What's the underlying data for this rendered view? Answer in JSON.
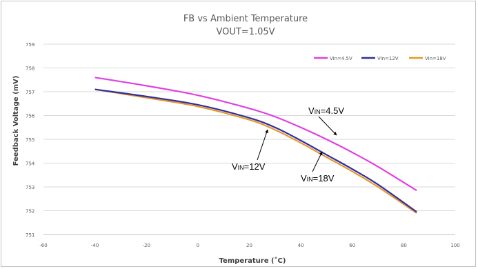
{
  "chart_data": {
    "type": "line",
    "title": "FB vs Ambient Temperature",
    "subtitle": "VOUT=1.05V",
    "xlabel": "Temperature  (˚C)",
    "ylabel": "Feedback Voltage (mV)",
    "xlim": [
      -60,
      100
    ],
    "ylim": [
      751,
      759
    ],
    "xticks": [
      "-60",
      "-40",
      "-20",
      "0",
      "20",
      "40",
      "60",
      "80",
      "100"
    ],
    "yticks": [
      "751",
      "752",
      "753",
      "754",
      "755",
      "756",
      "757",
      "758",
      "759"
    ],
    "grid": "horizontal",
    "legend_position": "top-right",
    "series": [
      {
        "name": "Vin=4.5V",
        "color": "#e040e0",
        "x": [
          -40,
          -20,
          0,
          20,
          30,
          40,
          50,
          60,
          70,
          85
        ],
        "y": [
          757.6,
          757.25,
          756.85,
          756.3,
          755.95,
          755.5,
          755.0,
          754.45,
          753.85,
          752.85
        ]
      },
      {
        "name": "Vin=12V",
        "color": "#2f2fa0",
        "x": [
          -40,
          -20,
          0,
          20,
          30,
          40,
          50,
          60,
          70,
          85
        ],
        "y": [
          757.1,
          756.8,
          756.45,
          755.9,
          755.5,
          754.95,
          754.35,
          753.75,
          753.1,
          751.95
        ]
      },
      {
        "name": "Vin=18V",
        "color": "#e8962a",
        "x": [
          -40,
          -20,
          0,
          20,
          30,
          40,
          50,
          60,
          70,
          85
        ],
        "y": [
          757.1,
          756.75,
          756.38,
          755.82,
          755.4,
          754.85,
          754.25,
          753.65,
          753.0,
          751.9
        ]
      }
    ],
    "annotations": [
      {
        "main": "V",
        "sub": "IN",
        "rest": "=4.5V",
        "target_x": 47,
        "target_y": 755.2
      },
      {
        "main": "V",
        "sub": "IN",
        "rest": "=12V",
        "target_x": 26,
        "target_y": 755.65
      },
      {
        "main": "V",
        "sub": "IN",
        "rest": "=18V",
        "target_x": 46,
        "target_y": 754.5
      }
    ]
  }
}
